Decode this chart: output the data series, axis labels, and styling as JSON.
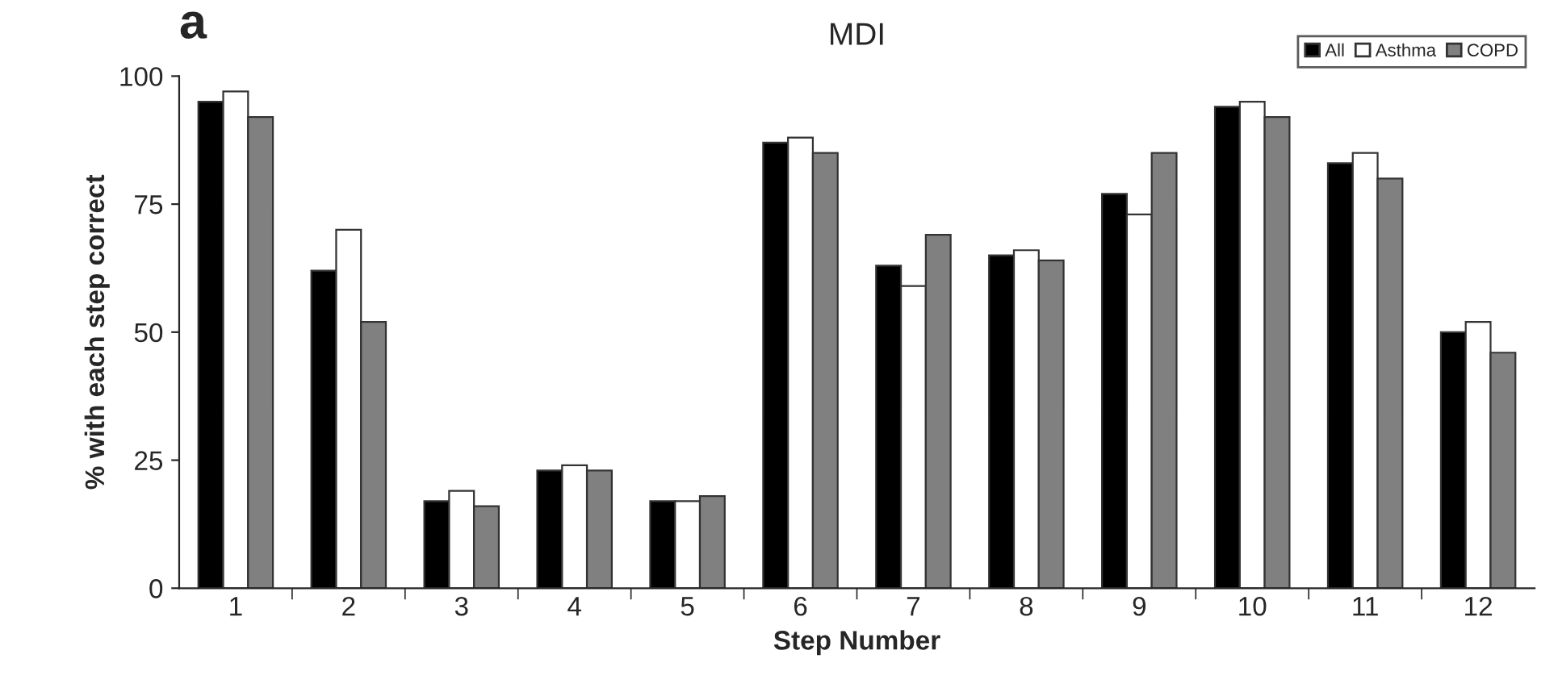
{
  "chart_data": {
    "type": "bar",
    "title": "MDI",
    "xlabel": "Step Number",
    "ylabel": "% with each step correct",
    "annotations": [
      "a"
    ],
    "categories": [
      "1",
      "2",
      "3",
      "4",
      "5",
      "6",
      "7",
      "8",
      "9",
      "10",
      "11",
      "12"
    ],
    "series": [
      {
        "name": "All",
        "color": "#000000",
        "values": [
          95,
          62,
          17,
          23,
          17,
          87,
          63,
          65,
          77,
          94,
          83,
          50
        ]
      },
      {
        "name": "Asthma",
        "color": "#ffffff",
        "values": [
          97,
          70,
          19,
          24,
          17,
          88,
          59,
          66,
          73,
          95,
          85,
          52
        ]
      },
      {
        "name": "COPD",
        "color": "#808080",
        "values": [
          92,
          52,
          16,
          23,
          18,
          85,
          69,
          64,
          85,
          92,
          80,
          46
        ]
      }
    ],
    "ylim": [
      0,
      100
    ],
    "yticks": [
      0,
      25,
      50,
      75,
      100
    ],
    "grid": false,
    "legend": "top right"
  }
}
